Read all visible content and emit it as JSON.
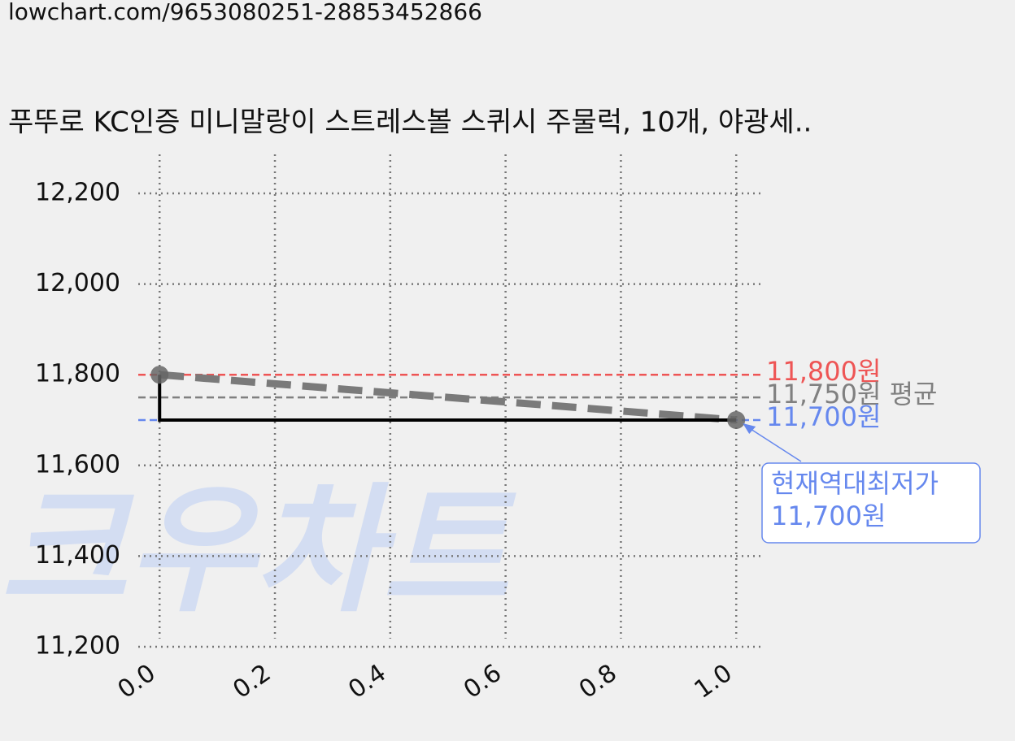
{
  "url": "lowchart.com/9653080251-28853452866",
  "chart_data": {
    "type": "line",
    "title": "푸뚜로 KC인증 미니말랑이 스트레스볼 스퀴시 주물럭, 10개, 야광세..",
    "watermark": "크우차트",
    "xlim": [
      -0.037,
      1.042
    ],
    "ylim": [
      11200,
      12286
    ],
    "xticks": [
      {
        "value": 0,
        "label": "0.0"
      },
      0.2,
      0.4,
      0.6,
      0.8,
      {
        "value": 1,
        "label": "1.0"
      }
    ],
    "yticks": [
      {
        "value": 11200,
        "label": "11,200"
      },
      {
        "value": 11400,
        "label": "11,400"
      },
      {
        "value": 11600,
        "label": "11,600"
      },
      {
        "value": 11800,
        "label": "11,800"
      },
      {
        "value": 12000,
        "label": "12,000"
      },
      {
        "value": 12200,
        "label": "12,200"
      }
    ],
    "grid": true,
    "lines": [
      {
        "x": [
          0,
          1
        ],
        "values": [
          11800,
          11700
        ],
        "color": "#7a7a7a",
        "style": "dashed",
        "width": 9
      },
      {
        "x": [
          0,
          0,
          1
        ],
        "values": [
          11800,
          11700,
          11700
        ],
        "color": "#000000",
        "style": "solid",
        "width": 4
      }
    ],
    "points": {
      "x": [
        0,
        1
      ],
      "values": [
        11800,
        11700
      ],
      "color": "#666666"
    },
    "hlines": [
      {
        "value": 11800,
        "label": "11,800원",
        "color": "#ee5555"
      },
      {
        "value": 11750,
        "label": "11,750원 평균",
        "color": "#808080"
      },
      {
        "value": 11700,
        "label": "11,700원",
        "color": "#6688ee"
      }
    ],
    "annotation": {
      "lines": [
        "현재역대최저가",
        "11,700원"
      ],
      "x": 1,
      "value": 11700,
      "color": "#6688ee"
    }
  }
}
